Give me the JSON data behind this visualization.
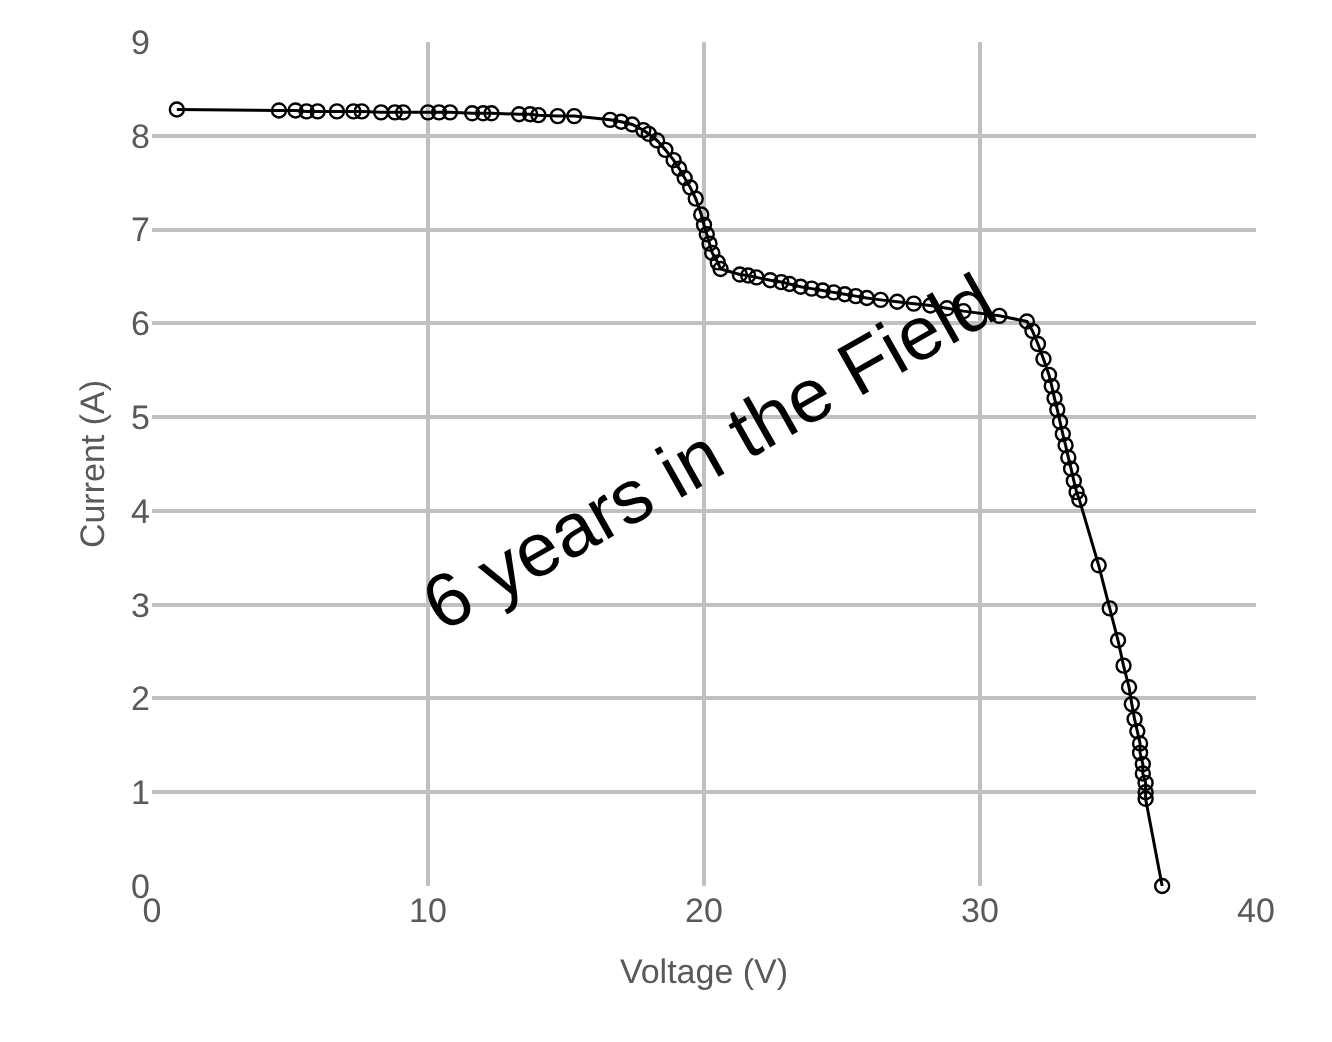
{
  "chart_data": {
    "type": "line",
    "xlabel": "Voltage (V)",
    "ylabel": "Current (A)",
    "annotations": [
      "6 years in the Field"
    ],
    "xlim": [
      0,
      40
    ],
    "xticks": [
      0,
      10,
      20,
      30,
      40
    ],
    "ylim": [
      0,
      9
    ],
    "yticks": [
      0,
      1,
      2,
      3,
      4,
      5,
      6,
      7,
      8,
      9
    ],
    "grid": true,
    "marker": "circle",
    "line_style": "solid",
    "series": [
      {
        "color": "#000000",
        "x": [
          0.9,
          4.6,
          5.2,
          5.6,
          6.0,
          6.7,
          7.3,
          7.6,
          8.3,
          8.8,
          9.1,
          10.0,
          10.4,
          10.8,
          11.6,
          12.0,
          12.3,
          13.3,
          13.7,
          14.0,
          14.7,
          15.3,
          16.6,
          17.0,
          17.4,
          17.8,
          18.0,
          18.3,
          18.6,
          18.9,
          19.1,
          19.3,
          19.5,
          19.7,
          19.9,
          20.0,
          20.1,
          20.2,
          20.3,
          20.5,
          20.6,
          21.3,
          21.6,
          21.9,
          22.4,
          22.8,
          23.1,
          23.5,
          23.9,
          24.3,
          24.7,
          25.1,
          25.5,
          25.9,
          26.4,
          27.0,
          27.6,
          28.2,
          28.8,
          29.4,
          30.7,
          31.7,
          31.9,
          32.1,
          32.3,
          32.5,
          32.6,
          32.7,
          32.8,
          32.9,
          33.0,
          33.1,
          33.2,
          33.3,
          33.4,
          33.5,
          33.6,
          34.3,
          34.7,
          35.0,
          35.2,
          35.4,
          35.5,
          35.6,
          35.7,
          35.8,
          35.8,
          35.9,
          35.9,
          36.0,
          36.0,
          36.0,
          36.6
        ],
        "values": [
          8.28,
          8.27,
          8.27,
          8.26,
          8.26,
          8.26,
          8.26,
          8.26,
          8.25,
          8.25,
          8.25,
          8.25,
          8.25,
          8.25,
          8.24,
          8.24,
          8.24,
          8.23,
          8.23,
          8.22,
          8.21,
          8.21,
          8.17,
          8.15,
          8.12,
          8.06,
          8.02,
          7.95,
          7.85,
          7.74,
          7.65,
          7.55,
          7.45,
          7.33,
          7.16,
          7.05,
          6.95,
          6.85,
          6.75,
          6.65,
          6.58,
          6.52,
          6.51,
          6.49,
          6.46,
          6.44,
          6.42,
          6.39,
          6.37,
          6.35,
          6.33,
          6.31,
          6.29,
          6.27,
          6.25,
          6.23,
          6.21,
          6.19,
          6.16,
          6.13,
          6.08,
          6.02,
          5.92,
          5.78,
          5.62,
          5.45,
          5.33,
          5.2,
          5.08,
          4.95,
          4.82,
          4.7,
          4.57,
          4.45,
          4.32,
          4.2,
          4.12,
          3.42,
          2.96,
          2.62,
          2.35,
          2.12,
          1.94,
          1.78,
          1.65,
          1.52,
          1.42,
          1.3,
          1.2,
          1.1,
          1.0,
          0.93,
          0.0
        ]
      }
    ]
  }
}
